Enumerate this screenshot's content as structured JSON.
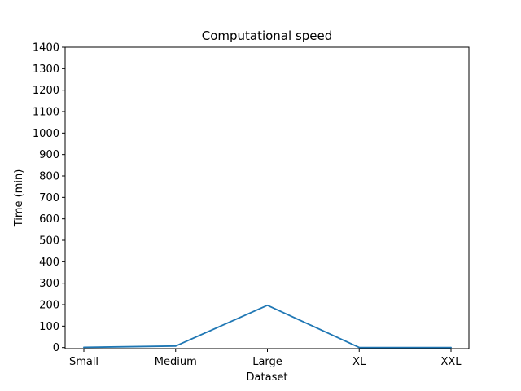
{
  "chart_data": {
    "type": "line",
    "title": "Computational speed",
    "xlabel": "Dataset",
    "ylabel": "Time (min)",
    "categories": [
      "Small",
      "Medium",
      "Large",
      "XL",
      "XXL"
    ],
    "series": [
      {
        "values": [
          1,
          7,
          197,
          0.5,
          0.5
        ]
      }
    ],
    "ylim": [
      -5,
      1400
    ],
    "yticks": [
      0,
      100,
      200,
      300,
      400,
      500,
      600,
      700,
      800,
      900,
      1000,
      1100,
      1200,
      1300,
      1400
    ],
    "grid": false,
    "legend": "none",
    "colors": {
      "line": "#1f77b4",
      "axes": "#000000",
      "background": "#ffffff"
    }
  }
}
